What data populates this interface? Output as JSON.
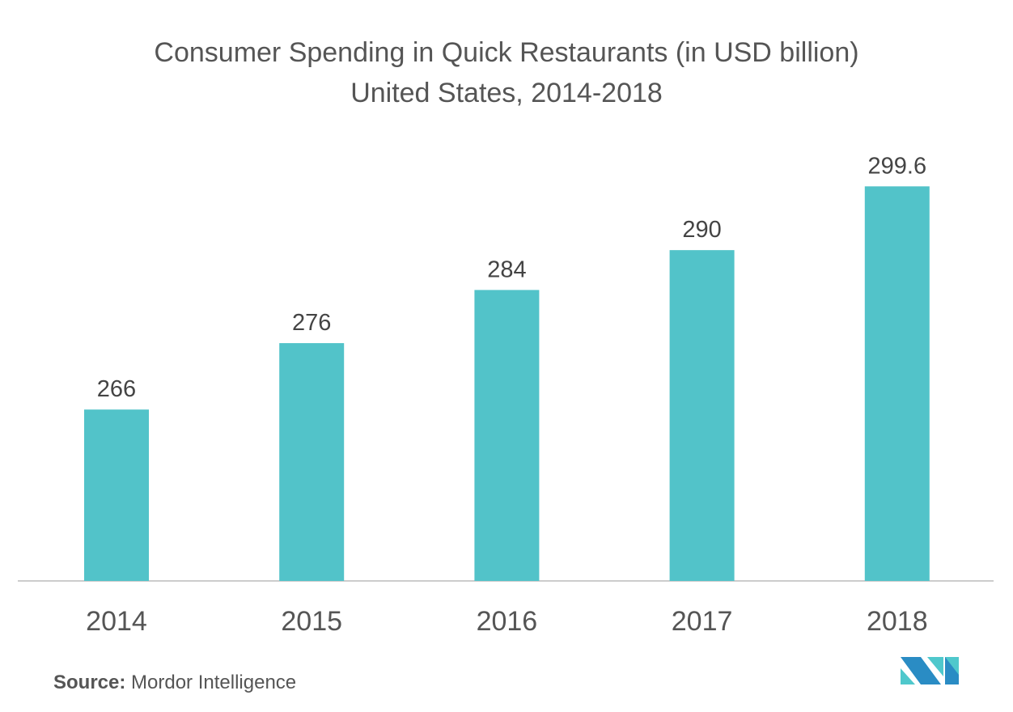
{
  "chart_data": {
    "type": "bar",
    "title": "Consumer Spending in Quick Restaurants (in USD billion)",
    "subtitle": "United States, 2014-2018",
    "categories": [
      "2014",
      "2015",
      "2016",
      "2017",
      "2018"
    ],
    "values": [
      266,
      276,
      284,
      290,
      299.6
    ],
    "value_labels": [
      "266",
      "276",
      "284",
      "290",
      "299.6"
    ],
    "xlabel": "",
    "ylabel": "",
    "ylim": [
      240,
      305
    ],
    "grid": false,
    "bar_color": "#52c3c9"
  },
  "source": {
    "label": "Source:",
    "text": "Mordor Intelligence"
  },
  "logo": {
    "colors": [
      "#2a8cc4",
      "#4fc8cc"
    ]
  }
}
